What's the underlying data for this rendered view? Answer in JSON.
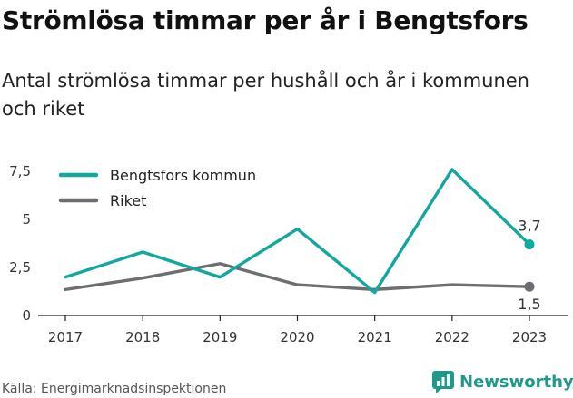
{
  "title": "Strömlösa timmar per år i Bengtsfors",
  "subtitle": "Antal strömlösa timmar per hushåll och år i kommunen och riket",
  "source": "Källa: Energimarknadsinspektionen",
  "brand": "Newsworthy",
  "colors": {
    "kommun": "#13a89e",
    "riket": "#6d6e71",
    "brand": "#1f9a8a"
  },
  "chart_data": {
    "type": "line",
    "x": [
      "2017",
      "2018",
      "2019",
      "2020",
      "2021",
      "2022",
      "2023"
    ],
    "ylim": [
      0,
      7.5
    ],
    "yticks": [
      {
        "value": 0,
        "label": "0"
      },
      {
        "value": 2.5,
        "label": "2,5"
      },
      {
        "value": 5,
        "label": "5"
      },
      {
        "value": 7.5,
        "label": "7,5"
      }
    ],
    "grid": false,
    "legend_position": "top-left",
    "series": [
      {
        "name": "Bengtsfors kommun",
        "color": "#13a89e",
        "values": [
          2.0,
          3.3,
          2.0,
          4.5,
          1.2,
          7.6,
          3.7
        ],
        "end_label": "3,7"
      },
      {
        "name": "Riket",
        "color": "#6d6e71",
        "values": [
          1.35,
          1.95,
          2.7,
          1.6,
          1.35,
          1.6,
          1.5
        ],
        "end_label": "1,5"
      }
    ]
  }
}
